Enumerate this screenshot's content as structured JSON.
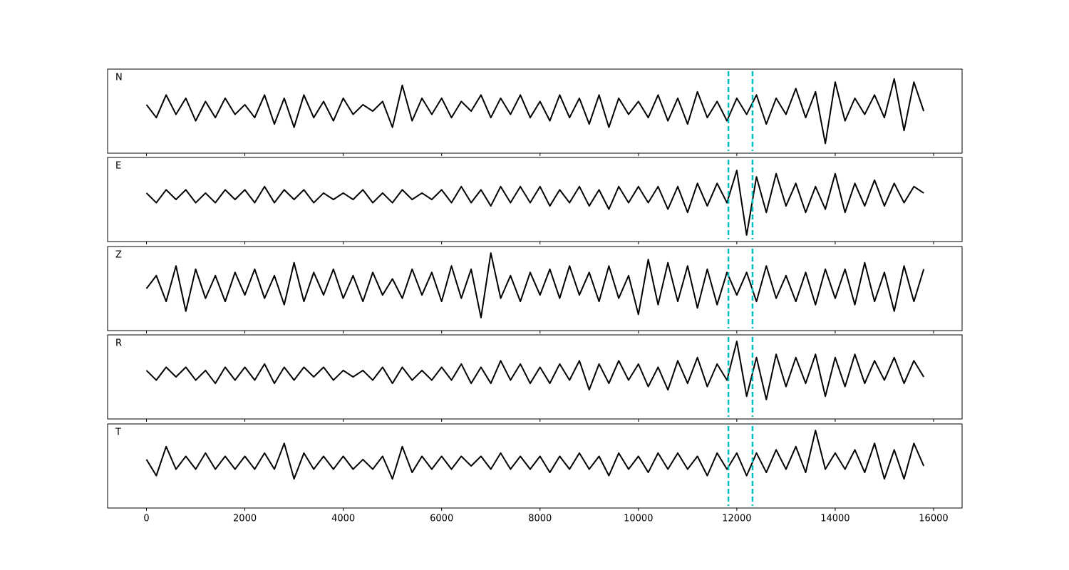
{
  "chart_data": [
    {
      "type": "line",
      "label": "N",
      "color": "#000000",
      "xlim": [
        -790,
        16580
      ],
      "ylim": [
        -1.4,
        1.2
      ],
      "x": [
        0,
        200,
        400,
        600,
        800,
        1000,
        1200,
        1400,
        1600,
        1800,
        2000,
        2200,
        2400,
        2600,
        2800,
        3000,
        3200,
        3400,
        3600,
        3800,
        4000,
        4200,
        4400,
        4600,
        4800,
        5000,
        5200,
        5400,
        5600,
        5800,
        6000,
        6200,
        6400,
        6600,
        6800,
        7000,
        7200,
        7400,
        7600,
        7800,
        8000,
        8200,
        8400,
        8600,
        8800,
        9000,
        9200,
        9400,
        9600,
        9800,
        10000,
        10200,
        10400,
        10600,
        10800,
        11000,
        11200,
        11400,
        11600,
        11800,
        12000,
        12200,
        12400,
        12600,
        12800,
        13000,
        13200,
        13400,
        13600,
        13800,
        14000,
        14200,
        14400,
        14600,
        14800,
        15000,
        15200,
        15400,
        15600,
        15800
      ],
      "values": [
        0.1,
        -0.3,
        0.4,
        -0.2,
        0.3,
        -0.4,
        0.2,
        -0.3,
        0.3,
        -0.2,
        0.1,
        -0.3,
        0.4,
        -0.5,
        0.3,
        -0.6,
        0.4,
        -0.3,
        0.2,
        -0.4,
        0.3,
        -0.2,
        0.1,
        -0.1,
        0.2,
        -0.6,
        0.7,
        -0.4,
        0.3,
        -0.2,
        0.3,
        -0.3,
        0.2,
        -0.1,
        0.4,
        -0.3,
        0.3,
        -0.2,
        0.4,
        -0.3,
        0.2,
        -0.4,
        0.4,
        -0.3,
        0.3,
        -0.5,
        0.4,
        -0.6,
        0.3,
        -0.2,
        0.2,
        -0.3,
        0.4,
        -0.4,
        0.3,
        -0.5,
        0.5,
        -0.3,
        0.2,
        -0.4,
        0.3,
        -0.2,
        0.4,
        -0.5,
        0.3,
        -0.2,
        0.6,
        -0.3,
        0.5,
        -1.1,
        0.8,
        -0.4,
        0.3,
        -0.2,
        0.4,
        -0.3,
        0.9,
        -0.7,
        0.8,
        -0.1
      ],
      "vlines": [
        11830,
        12320
      ],
      "vline_color": "#00bfbf"
    },
    {
      "type": "line",
      "label": "E",
      "color": "#000000",
      "xlim": [
        -790,
        16580
      ],
      "ylim": [
        -1.4,
        1.2
      ],
      "x": [
        0,
        200,
        400,
        600,
        800,
        1000,
        1200,
        1400,
        1600,
        1800,
        2000,
        2200,
        2400,
        2600,
        2800,
        3000,
        3200,
        3400,
        3600,
        3800,
        4000,
        4200,
        4400,
        4600,
        4800,
        5000,
        5200,
        5400,
        5600,
        5800,
        6000,
        6200,
        6400,
        6600,
        6800,
        7000,
        7200,
        7400,
        7600,
        7800,
        8000,
        8200,
        8400,
        8600,
        8800,
        9000,
        9200,
        9400,
        9600,
        9800,
        10000,
        10200,
        10400,
        10600,
        10800,
        11000,
        11200,
        11400,
        11600,
        11800,
        12000,
        12200,
        12400,
        12600,
        12800,
        13000,
        13200,
        13400,
        13600,
        13800,
        14000,
        14200,
        14400,
        14600,
        14800,
        15000,
        15200,
        15400,
        15600,
        15800
      ],
      "values": [
        0.1,
        -0.2,
        0.2,
        -0.1,
        0.2,
        -0.2,
        0.1,
        -0.2,
        0.2,
        -0.1,
        0.2,
        -0.2,
        0.3,
        -0.2,
        0.2,
        -0.1,
        0.2,
        -0.2,
        0.1,
        -0.1,
        0.1,
        -0.1,
        0.2,
        -0.2,
        0.1,
        -0.2,
        0.2,
        -0.1,
        0.1,
        -0.1,
        0.2,
        -0.2,
        0.3,
        -0.2,
        0.2,
        -0.3,
        0.3,
        -0.2,
        0.3,
        -0.2,
        0.3,
        -0.3,
        0.2,
        -0.2,
        0.3,
        -0.3,
        0.2,
        -0.4,
        0.3,
        -0.2,
        0.3,
        -0.2,
        0.3,
        -0.4,
        0.3,
        -0.5,
        0.4,
        -0.3,
        0.4,
        -0.2,
        0.8,
        -1.2,
        0.6,
        -0.5,
        0.7,
        -0.3,
        0.4,
        -0.5,
        0.3,
        -0.4,
        0.7,
        -0.5,
        0.4,
        -0.3,
        0.5,
        -0.3,
        0.4,
        -0.2,
        0.3,
        0.1
      ],
      "vlines": [
        11830,
        12320
      ],
      "vline_color": "#00bfbf"
    },
    {
      "type": "line",
      "label": "Z",
      "color": "#000000",
      "xlim": [
        -790,
        16580
      ],
      "ylim": [
        -1.4,
        1.2
      ],
      "x": [
        0,
        200,
        400,
        600,
        800,
        1000,
        1200,
        1400,
        1600,
        1800,
        2000,
        2200,
        2400,
        2600,
        2800,
        3000,
        3200,
        3400,
        3600,
        3800,
        4000,
        4200,
        4400,
        4600,
        4800,
        5000,
        5200,
        5400,
        5600,
        5800,
        6000,
        6200,
        6400,
        6600,
        6800,
        7000,
        7200,
        7400,
        7600,
        7800,
        8000,
        8200,
        8400,
        8600,
        8800,
        9000,
        9200,
        9400,
        9600,
        9800,
        10000,
        10200,
        10400,
        10600,
        10800,
        11000,
        11200,
        11400,
        11600,
        11800,
        12000,
        12200,
        12400,
        12600,
        12800,
        13000,
        13200,
        13400,
        13600,
        13800,
        14000,
        14200,
        14400,
        14600,
        14800,
        15000,
        15200,
        15400,
        15600,
        15800
      ],
      "values": [
        -0.1,
        0.3,
        -0.5,
        0.6,
        -0.8,
        0.5,
        -0.4,
        0.3,
        -0.5,
        0.4,
        -0.3,
        0.5,
        -0.4,
        0.3,
        -0.6,
        0.7,
        -0.5,
        0.4,
        -0.3,
        0.5,
        -0.4,
        0.3,
        -0.5,
        0.4,
        -0.3,
        0.2,
        -0.4,
        0.5,
        -0.3,
        0.4,
        -0.5,
        0.6,
        -0.4,
        0.5,
        -1.0,
        1.0,
        -0.4,
        0.3,
        -0.5,
        0.4,
        -0.3,
        0.5,
        -0.4,
        0.6,
        -0.3,
        0.4,
        -0.5,
        0.6,
        -0.4,
        0.3,
        -0.9,
        0.8,
        -0.6,
        0.7,
        -0.5,
        0.6,
        -0.7,
        0.5,
        -0.6,
        0.4,
        -0.3,
        0.4,
        -0.5,
        0.6,
        -0.4,
        0.3,
        -0.5,
        0.4,
        -0.6,
        0.5,
        -0.4,
        0.5,
        -0.6,
        0.7,
        -0.5,
        0.4,
        -0.8,
        0.6,
        -0.5,
        0.5
      ],
      "vlines": [
        11830,
        12320
      ],
      "vline_color": "#00bfbf"
    },
    {
      "type": "line",
      "label": "R",
      "color": "#000000",
      "xlim": [
        -790,
        16580
      ],
      "ylim": [
        -1.4,
        1.2
      ],
      "x": [
        0,
        200,
        400,
        600,
        800,
        1000,
        1200,
        1400,
        1600,
        1800,
        2000,
        2200,
        2400,
        2600,
        2800,
        3000,
        3200,
        3400,
        3600,
        3800,
        4000,
        4200,
        4400,
        4600,
        4800,
        5000,
        5200,
        5400,
        5600,
        5800,
        6000,
        6200,
        6400,
        6600,
        6800,
        7000,
        7200,
        7400,
        7600,
        7800,
        8000,
        8200,
        8400,
        8600,
        8800,
        9000,
        9200,
        9400,
        9600,
        9800,
        10000,
        10200,
        10400,
        10600,
        10800,
        11000,
        11200,
        11400,
        11600,
        11800,
        12000,
        12200,
        12400,
        12600,
        12800,
        13000,
        13200,
        13400,
        13600,
        13800,
        14000,
        14200,
        14400,
        14600,
        14800,
        15000,
        15200,
        15400,
        15600,
        15800
      ],
      "values": [
        0.1,
        -0.2,
        0.2,
        -0.1,
        0.2,
        -0.2,
        0.1,
        -0.3,
        0.2,
        -0.2,
        0.2,
        -0.2,
        0.3,
        -0.3,
        0.2,
        -0.2,
        0.2,
        -0.1,
        0.2,
        -0.2,
        0.1,
        -0.1,
        0.1,
        -0.2,
        0.2,
        -0.3,
        0.2,
        -0.2,
        0.1,
        -0.2,
        0.2,
        -0.2,
        0.3,
        -0.3,
        0.2,
        -0.3,
        0.4,
        -0.2,
        0.3,
        -0.3,
        0.2,
        -0.3,
        0.3,
        -0.2,
        0.4,
        -0.5,
        0.3,
        -0.3,
        0.4,
        -0.2,
        0.3,
        -0.4,
        0.2,
        -0.5,
        0.4,
        -0.3,
        0.5,
        -0.4,
        0.3,
        -0.2,
        1.0,
        -0.7,
        0.5,
        -0.8,
        0.6,
        -0.4,
        0.5,
        -0.3,
        0.6,
        -0.7,
        0.5,
        -0.4,
        0.6,
        -0.3,
        0.4,
        -0.2,
        0.5,
        -0.3,
        0.4,
        -0.1
      ],
      "vlines": [
        11830,
        12320
      ],
      "vline_color": "#00bfbf"
    },
    {
      "type": "line",
      "label": "T",
      "color": "#000000",
      "xlim": [
        -790,
        16580
      ],
      "ylim": [
        -1.4,
        1.2
      ],
      "x": [
        0,
        200,
        400,
        600,
        800,
        1000,
        1200,
        1400,
        1600,
        1800,
        2000,
        2200,
        2400,
        2600,
        2800,
        3000,
        3200,
        3400,
        3600,
        3800,
        4000,
        4200,
        4400,
        4600,
        4800,
        5000,
        5200,
        5400,
        5600,
        5800,
        6000,
        6200,
        6400,
        6600,
        6800,
        7000,
        7200,
        7400,
        7600,
        7800,
        8000,
        8200,
        8400,
        8600,
        8800,
        9000,
        9200,
        9400,
        9600,
        9800,
        10000,
        10200,
        10400,
        10600,
        10800,
        11000,
        11200,
        11400,
        11600,
        11800,
        12000,
        12200,
        12400,
        12600,
        12800,
        13000,
        13200,
        13400,
        13600,
        13800,
        14000,
        14200,
        14400,
        14600,
        14800,
        15000,
        15200,
        15400,
        15600,
        15800
      ],
      "values": [
        0.1,
        -0.4,
        0.5,
        -0.2,
        0.2,
        -0.2,
        0.3,
        -0.2,
        0.2,
        -0.2,
        0.2,
        -0.2,
        0.3,
        -0.2,
        0.6,
        -0.5,
        0.3,
        -0.2,
        0.2,
        -0.2,
        0.2,
        -0.2,
        0.1,
        -0.2,
        0.2,
        -0.5,
        0.5,
        -0.3,
        0.2,
        -0.2,
        0.2,
        -0.2,
        0.2,
        -0.1,
        0.2,
        -0.2,
        0.3,
        -0.2,
        0.2,
        -0.2,
        0.2,
        -0.3,
        0.2,
        -0.2,
        0.3,
        -0.2,
        0.2,
        -0.4,
        0.3,
        -0.2,
        0.2,
        -0.3,
        0.3,
        -0.2,
        0.3,
        -0.2,
        0.2,
        -0.4,
        0.3,
        -0.2,
        0.3,
        -0.4,
        0.3,
        -0.3,
        0.4,
        -0.2,
        0.5,
        -0.3,
        1.0,
        -0.2,
        0.3,
        -0.2,
        0.4,
        -0.3,
        0.6,
        -0.5,
        0.4,
        -0.5,
        0.6,
        -0.1
      ],
      "vlines": [
        11830,
        12320
      ],
      "vline_color": "#00bfbf",
      "xticks": [
        0,
        2000,
        4000,
        6000,
        8000,
        10000,
        12000,
        14000,
        16000
      ]
    }
  ]
}
